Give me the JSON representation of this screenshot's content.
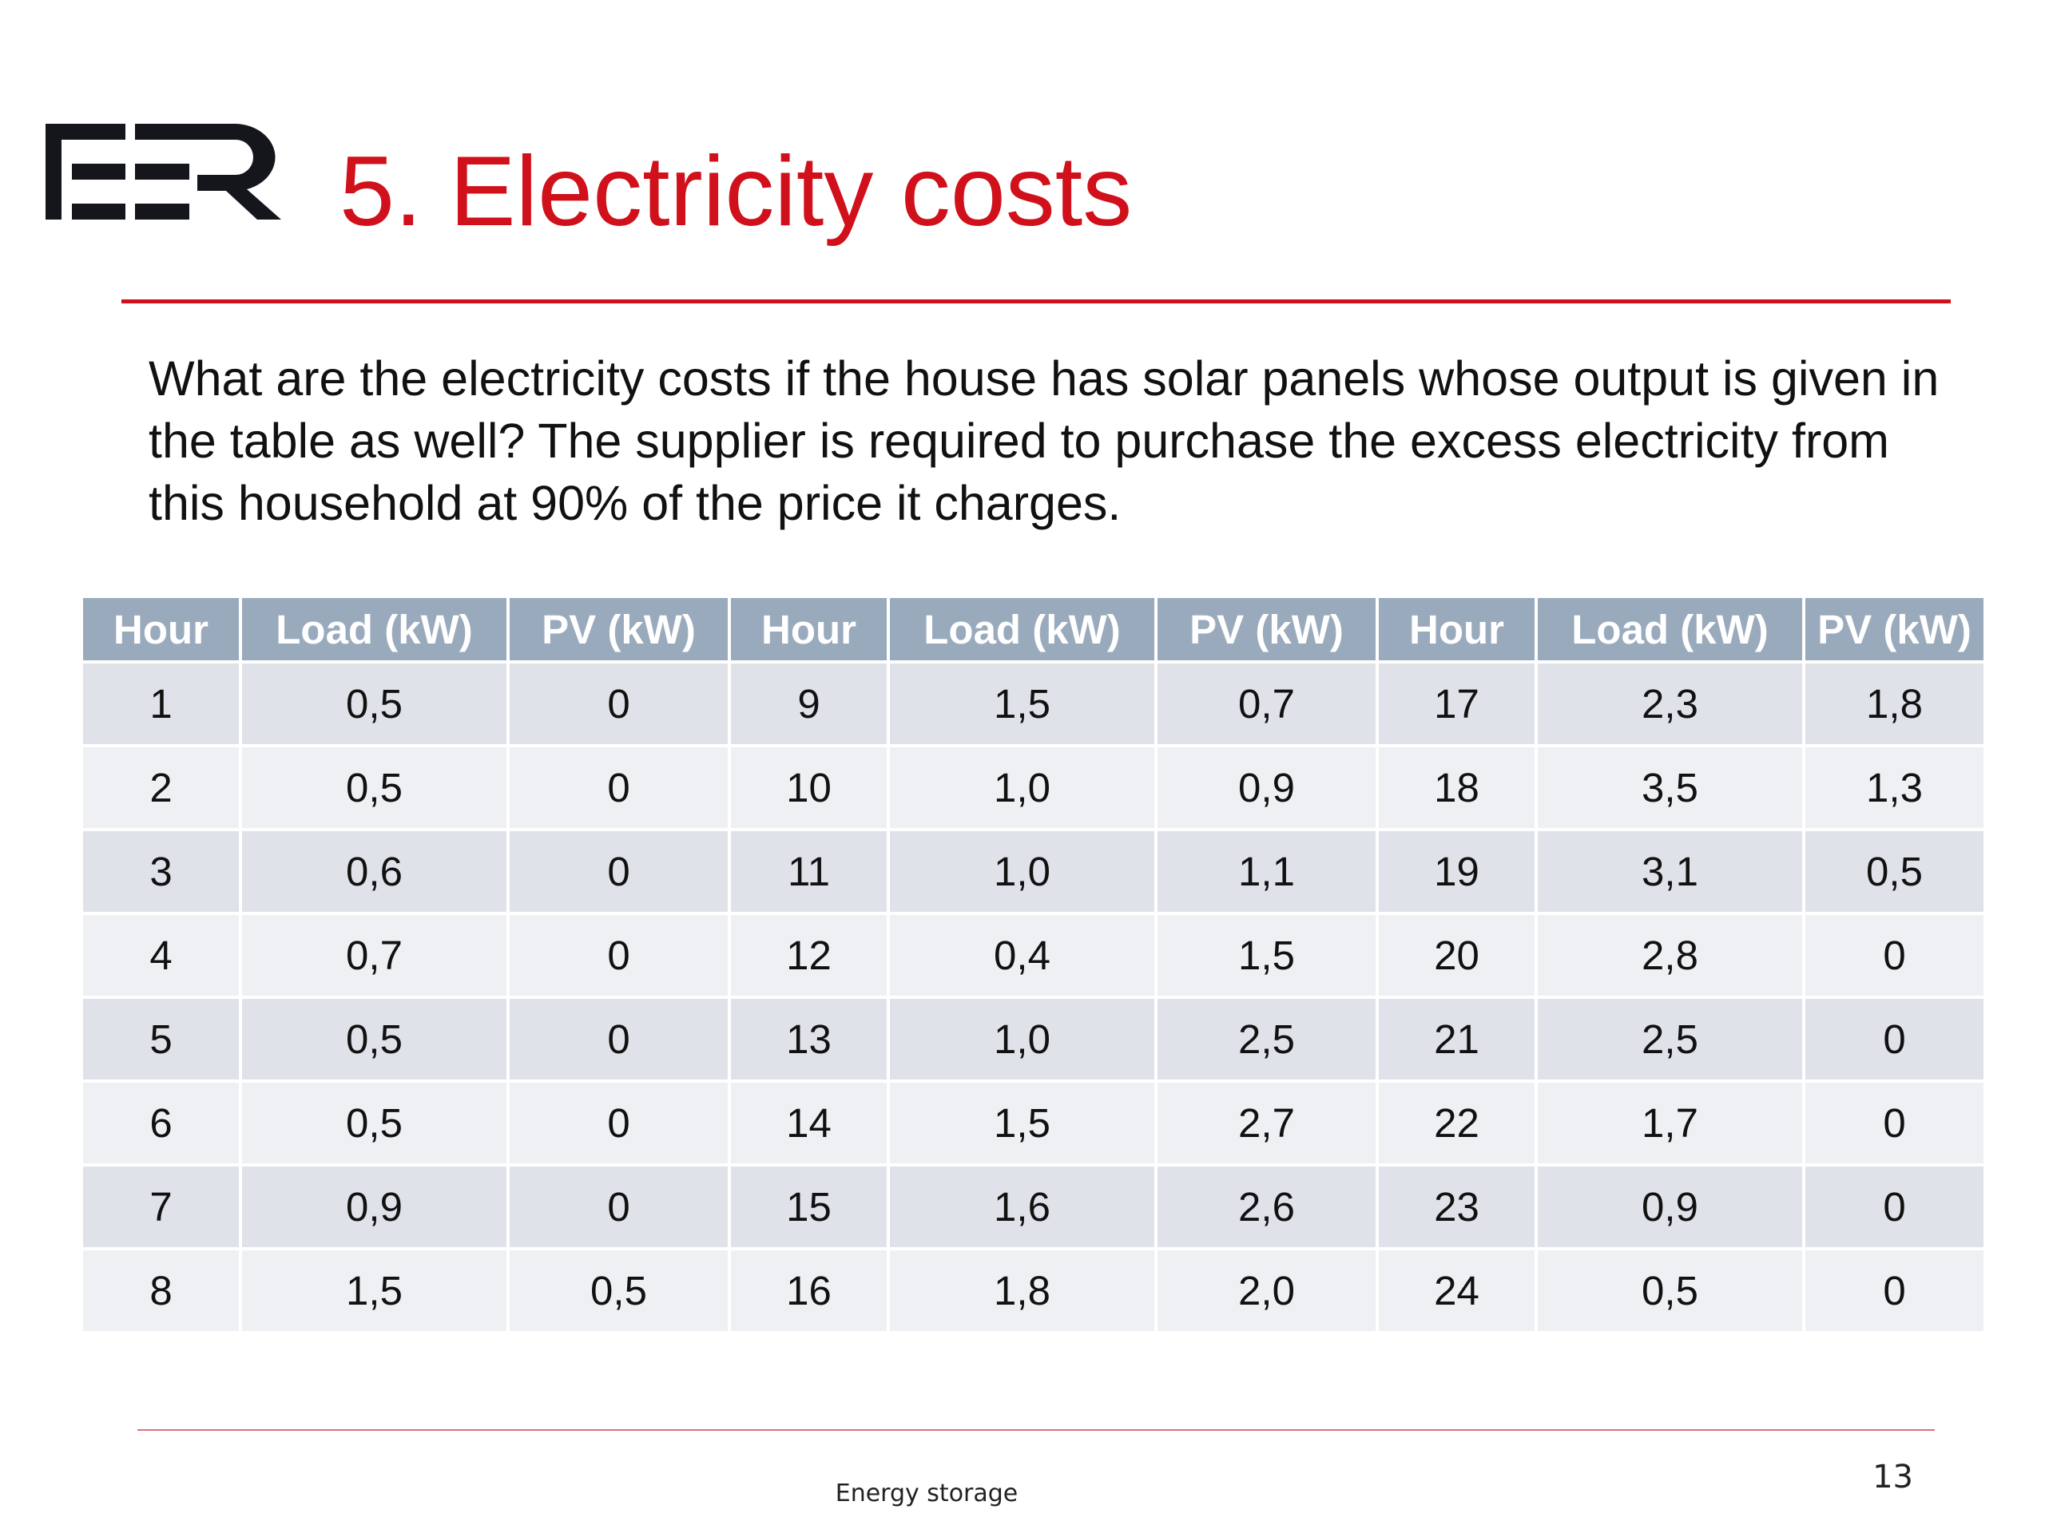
{
  "slide": {
    "logo": "FER",
    "title": "5. Electricity costs",
    "question": "What are the electricity costs if the house has solar panels whose output is given in the table as well? The supplier is required to purchase the excess electricity from this household at 90% of the price it charges.",
    "footer": "Energy storage",
    "page_number": "13",
    "colors": {
      "title": "#d0101a",
      "header_bg": "#9aaabd",
      "row_odd": "#dfe2e8",
      "row_even": "#eff0f4"
    }
  },
  "table": {
    "headers": [
      "Hour",
      "Load (kW)",
      "PV (kW)",
      "Hour",
      "Load (kW)",
      "PV (kW)",
      "Hour",
      "Load (kW)",
      "PV (kW)"
    ],
    "rows": [
      [
        "1",
        "0,5",
        "0",
        "9",
        "1,5",
        "0,7",
        "17",
        "2,3",
        "1,8"
      ],
      [
        "2",
        "0,5",
        "0",
        "10",
        "1,0",
        "0,9",
        "18",
        "3,5",
        "1,3"
      ],
      [
        "3",
        "0,6",
        "0",
        "11",
        "1,0",
        "1,1",
        "19",
        "3,1",
        "0,5"
      ],
      [
        "4",
        "0,7",
        "0",
        "12",
        "0,4",
        "1,5",
        "20",
        "2,8",
        "0"
      ],
      [
        "5",
        "0,5",
        "0",
        "13",
        "1,0",
        "2,5",
        "21",
        "2,5",
        "0"
      ],
      [
        "6",
        "0,5",
        "0",
        "14",
        "1,5",
        "2,7",
        "22",
        "1,7",
        "0"
      ],
      [
        "7",
        "0,9",
        "0",
        "15",
        "1,6",
        "2,6",
        "23",
        "0,9",
        "0"
      ],
      [
        "8",
        "1,5",
        "0,5",
        "16",
        "1,8",
        "2,0",
        "24",
        "0,5",
        "0"
      ]
    ]
  }
}
